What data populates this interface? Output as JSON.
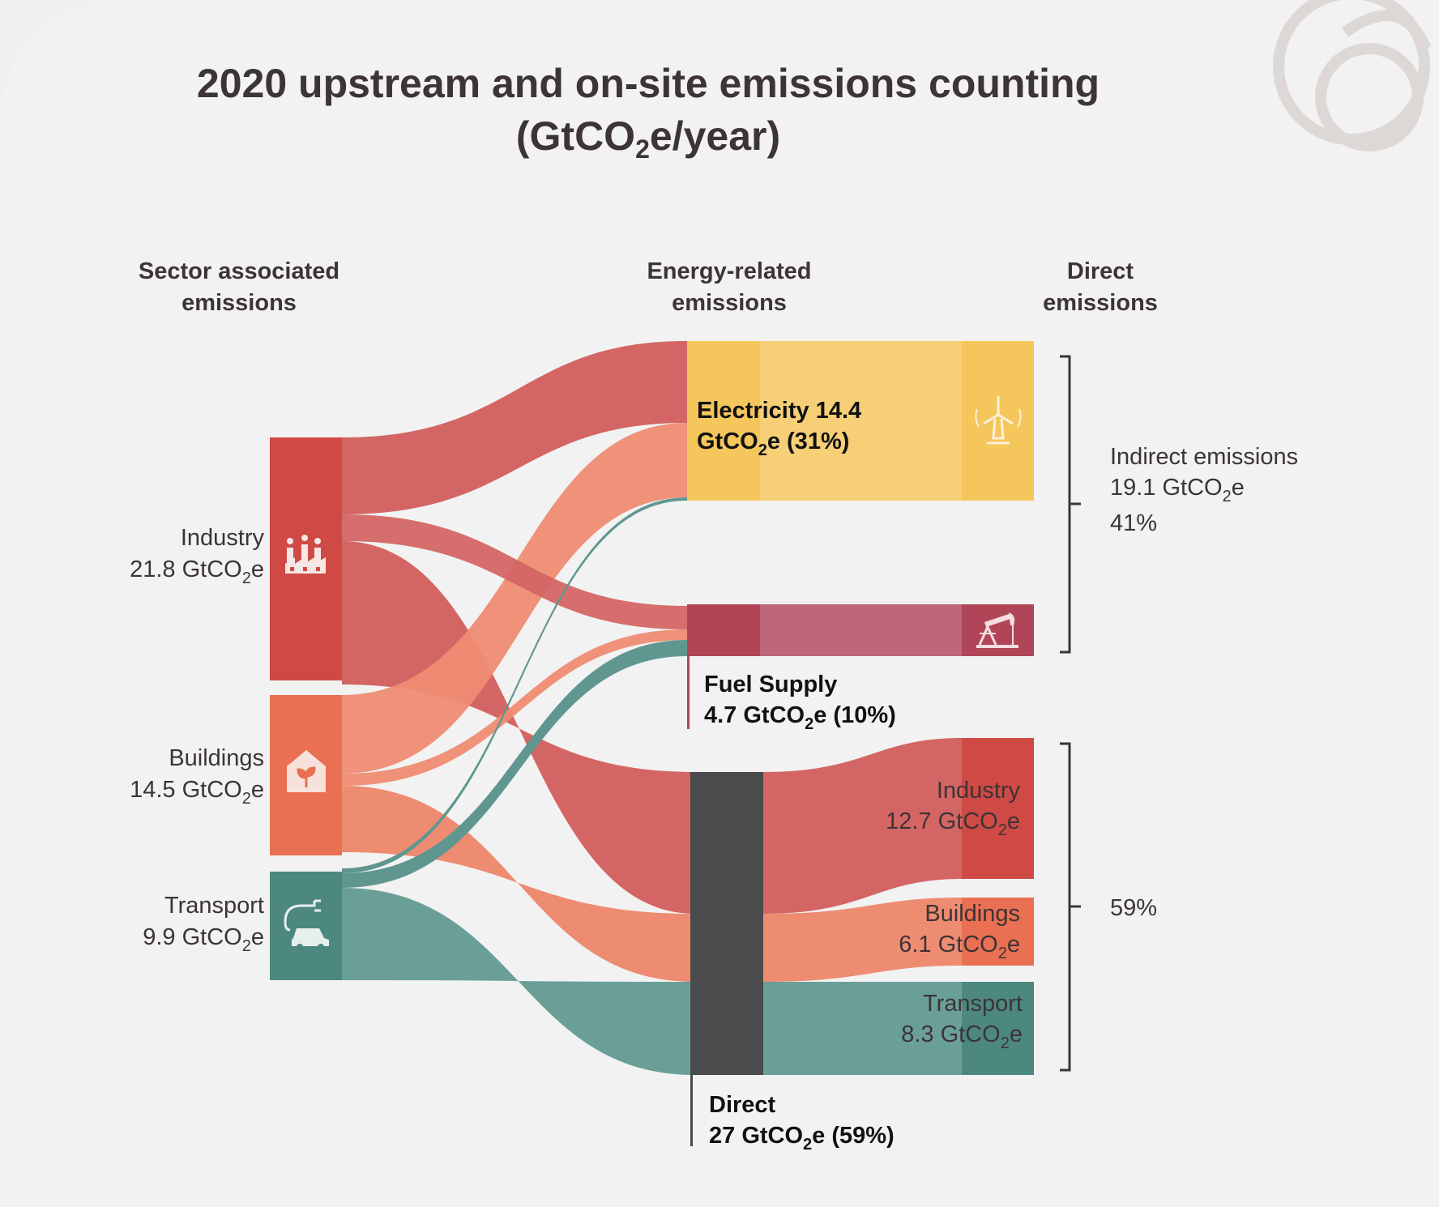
{
  "title": {
    "line1": "2020 upstream and on-site emissions counting",
    "line2_a": "(GtCO",
    "line2_sub": "2",
    "line2_b": "e/year)"
  },
  "columns": {
    "sector": [
      "Sector associated",
      "emissions"
    ],
    "energy": [
      "Energy-related",
      "emissions"
    ],
    "direct": [
      "Direct",
      "emissions"
    ]
  },
  "unit": {
    "a": "GtCO",
    "sub": "2",
    "b": "e"
  },
  "sources": [
    {
      "name": "Industry",
      "value": "21.8"
    },
    {
      "name": "Buildings",
      "value": "14.5"
    },
    {
      "name": "Transport",
      "value": "9.9"
    }
  ],
  "electricity": {
    "line1": "Electricity 14.4",
    "line2_a": "GtCO",
    "line2_sub": "2",
    "line2_b": "e (31%)"
  },
  "fuel_supply": {
    "line1": "Fuel Supply",
    "line2_a": "4.7 GtCO",
    "line2_sub": "2",
    "line2_b": "e (10%)"
  },
  "direct_node": {
    "line1": "Direct",
    "line2_a": "27 GtCO",
    "line2_sub": "2",
    "line2_b": "e (59%)"
  },
  "direct_outputs": [
    {
      "name": "Industry",
      "value": "12.7"
    },
    {
      "name": "Buildings",
      "value": "6.1"
    },
    {
      "name": "Transport",
      "value": "8.3"
    }
  ],
  "indirect": {
    "label": "Indirect emissions",
    "value_a": "19.1 GtCO",
    "value_sub": "2",
    "value_b": "e",
    "pct": "41%"
  },
  "direct_pct": "59%",
  "colors": {
    "industry": "#cf4a45",
    "industry_flow": "#d36664",
    "buildings": "#ea7053",
    "buildings_flow": "#ee8c72",
    "transport": "#4c8880",
    "transport_flow": "#6a9f98",
    "electricity": "#f6cf76",
    "electricity_dark": "#f5c65c",
    "fuel": "#c06679",
    "fuel_dark": "#b04558",
    "direct": "#4b4a4c",
    "text": "#3c3436"
  },
  "chart_data": {
    "type": "sankey",
    "unit": "GtCO2e/year",
    "nodes": [
      {
        "id": "Industry",
        "column": "Sector associated emissions",
        "value": 21.8
      },
      {
        "id": "Buildings",
        "column": "Sector associated emissions",
        "value": 14.5
      },
      {
        "id": "Transport",
        "column": "Sector associated emissions",
        "value": 9.9
      },
      {
        "id": "Electricity",
        "column": "Energy-related emissions",
        "value": 14.4,
        "percent": 31
      },
      {
        "id": "Fuel Supply",
        "column": "Energy-related emissions",
        "value": 4.7,
        "percent": 10
      },
      {
        "id": "Direct",
        "column": "Energy-related emissions",
        "value": 27,
        "percent": 59
      },
      {
        "id": "Industry (direct)",
        "column": "Direct emissions",
        "value": 12.7
      },
      {
        "id": "Buildings (direct)",
        "column": "Direct emissions",
        "value": 6.1
      },
      {
        "id": "Transport (direct)",
        "column": "Direct emissions",
        "value": 8.3
      }
    ],
    "links": [
      {
        "source": "Industry",
        "target": "Electricity",
        "value": 6.9
      },
      {
        "source": "Industry",
        "target": "Fuel Supply",
        "value": 2.2
      },
      {
        "source": "Industry",
        "target": "Direct",
        "value": 12.7
      },
      {
        "source": "Buildings",
        "target": "Electricity",
        "value": 7.4
      },
      {
        "source": "Buildings",
        "target": "Fuel Supply",
        "value": 1.0
      },
      {
        "source": "Buildings",
        "target": "Direct",
        "value": 6.1
      },
      {
        "source": "Transport",
        "target": "Electricity",
        "value": 0.1
      },
      {
        "source": "Transport",
        "target": "Fuel Supply",
        "value": 1.5
      },
      {
        "source": "Transport",
        "target": "Direct",
        "value": 8.3
      }
    ],
    "groups": [
      {
        "label": "Indirect emissions",
        "value": 19.1,
        "percent": 41
      },
      {
        "label": "",
        "percent": 59
      }
    ]
  }
}
